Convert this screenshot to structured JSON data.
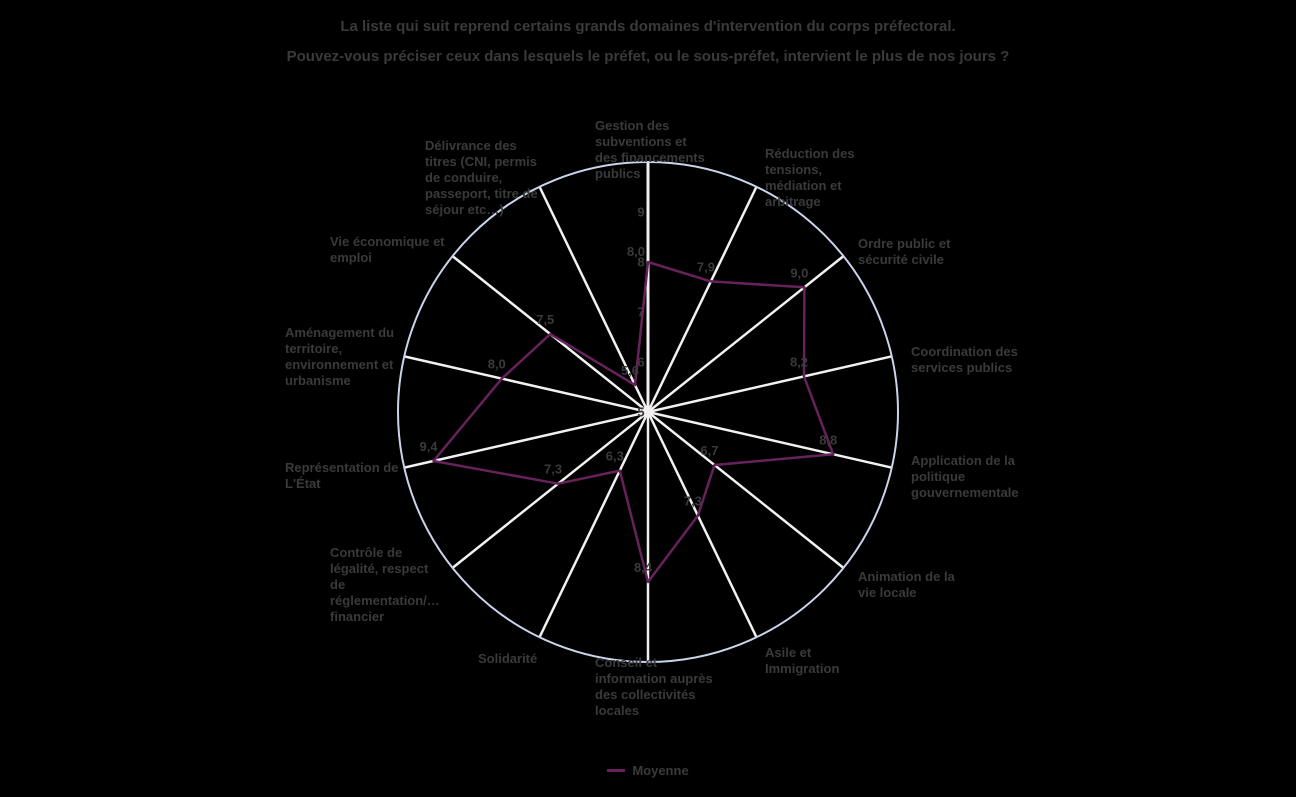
{
  "title": {
    "line1": "La liste qui suit reprend certains grands domaines d'intervention du corps préfectoral.",
    "line2": "Pouvez-vous préciser ceux dans lesquels le préfet, ou le sous-préfet, intervient le plus de nos jours ?"
  },
  "legend": {
    "series_label": "Moyenne"
  },
  "colors": {
    "background": "#000000",
    "text": "#3a3a3a",
    "outer_circle": "#c9d3ea",
    "spokes": "#f2f0f0",
    "series_line": "#67225c"
  },
  "chart_data": {
    "type": "radar",
    "categories": [
      "Gestion des\nsubventions et\ndes financements\npublics",
      "Réduction des\ntensions,\nmédiation et\narbitrage",
      "Ordre public et\nsécurité civile",
      "Coordination des\nservices publics",
      "Application de la\npolitique\ngouvernementale",
      "Animation de la\nvie locale",
      "Asile et\nImmigration",
      "Conseil et\ninformation auprès\ndes collectivités\nlocales",
      "Solidarité",
      "Contrôle de\nlégalité, respect\nde\nréglementation/…\nfinancier",
      "Représentation de\nL'État",
      "Aménagement du\nterritoire,\nenvironnement et\nurbanisme",
      "Vie économique et\nemploi",
      "Délivrance des\ntitres (CNI, permis\nde conduire,\npasseport, titre de\nséjour etc…)"
    ],
    "series": [
      {
        "name": "Moyenne",
        "values": [
          8.0,
          7.9,
          9.0,
          8.2,
          8.8,
          6.7,
          7.3,
          8.4,
          6.3,
          7.3,
          9.4,
          8.0,
          7.5,
          5.6
        ],
        "value_labels": [
          "8,0",
          "7,9",
          "9,0",
          "8,2",
          "8,8",
          "6,7",
          "7,3",
          "8,4",
          "6,3",
          "7,3",
          "9,4",
          "8,0",
          "7,5",
          "5,6"
        ]
      }
    ],
    "axis": {
      "min": 5,
      "max": 10,
      "tick_values": [
        9,
        8,
        7,
        6,
        5
      ],
      "tick_labels": [
        "9",
        "8",
        "7",
        "6",
        "5"
      ]
    },
    "grid": "spokes-and-outer-circle-only",
    "legend_position": "bottom"
  }
}
